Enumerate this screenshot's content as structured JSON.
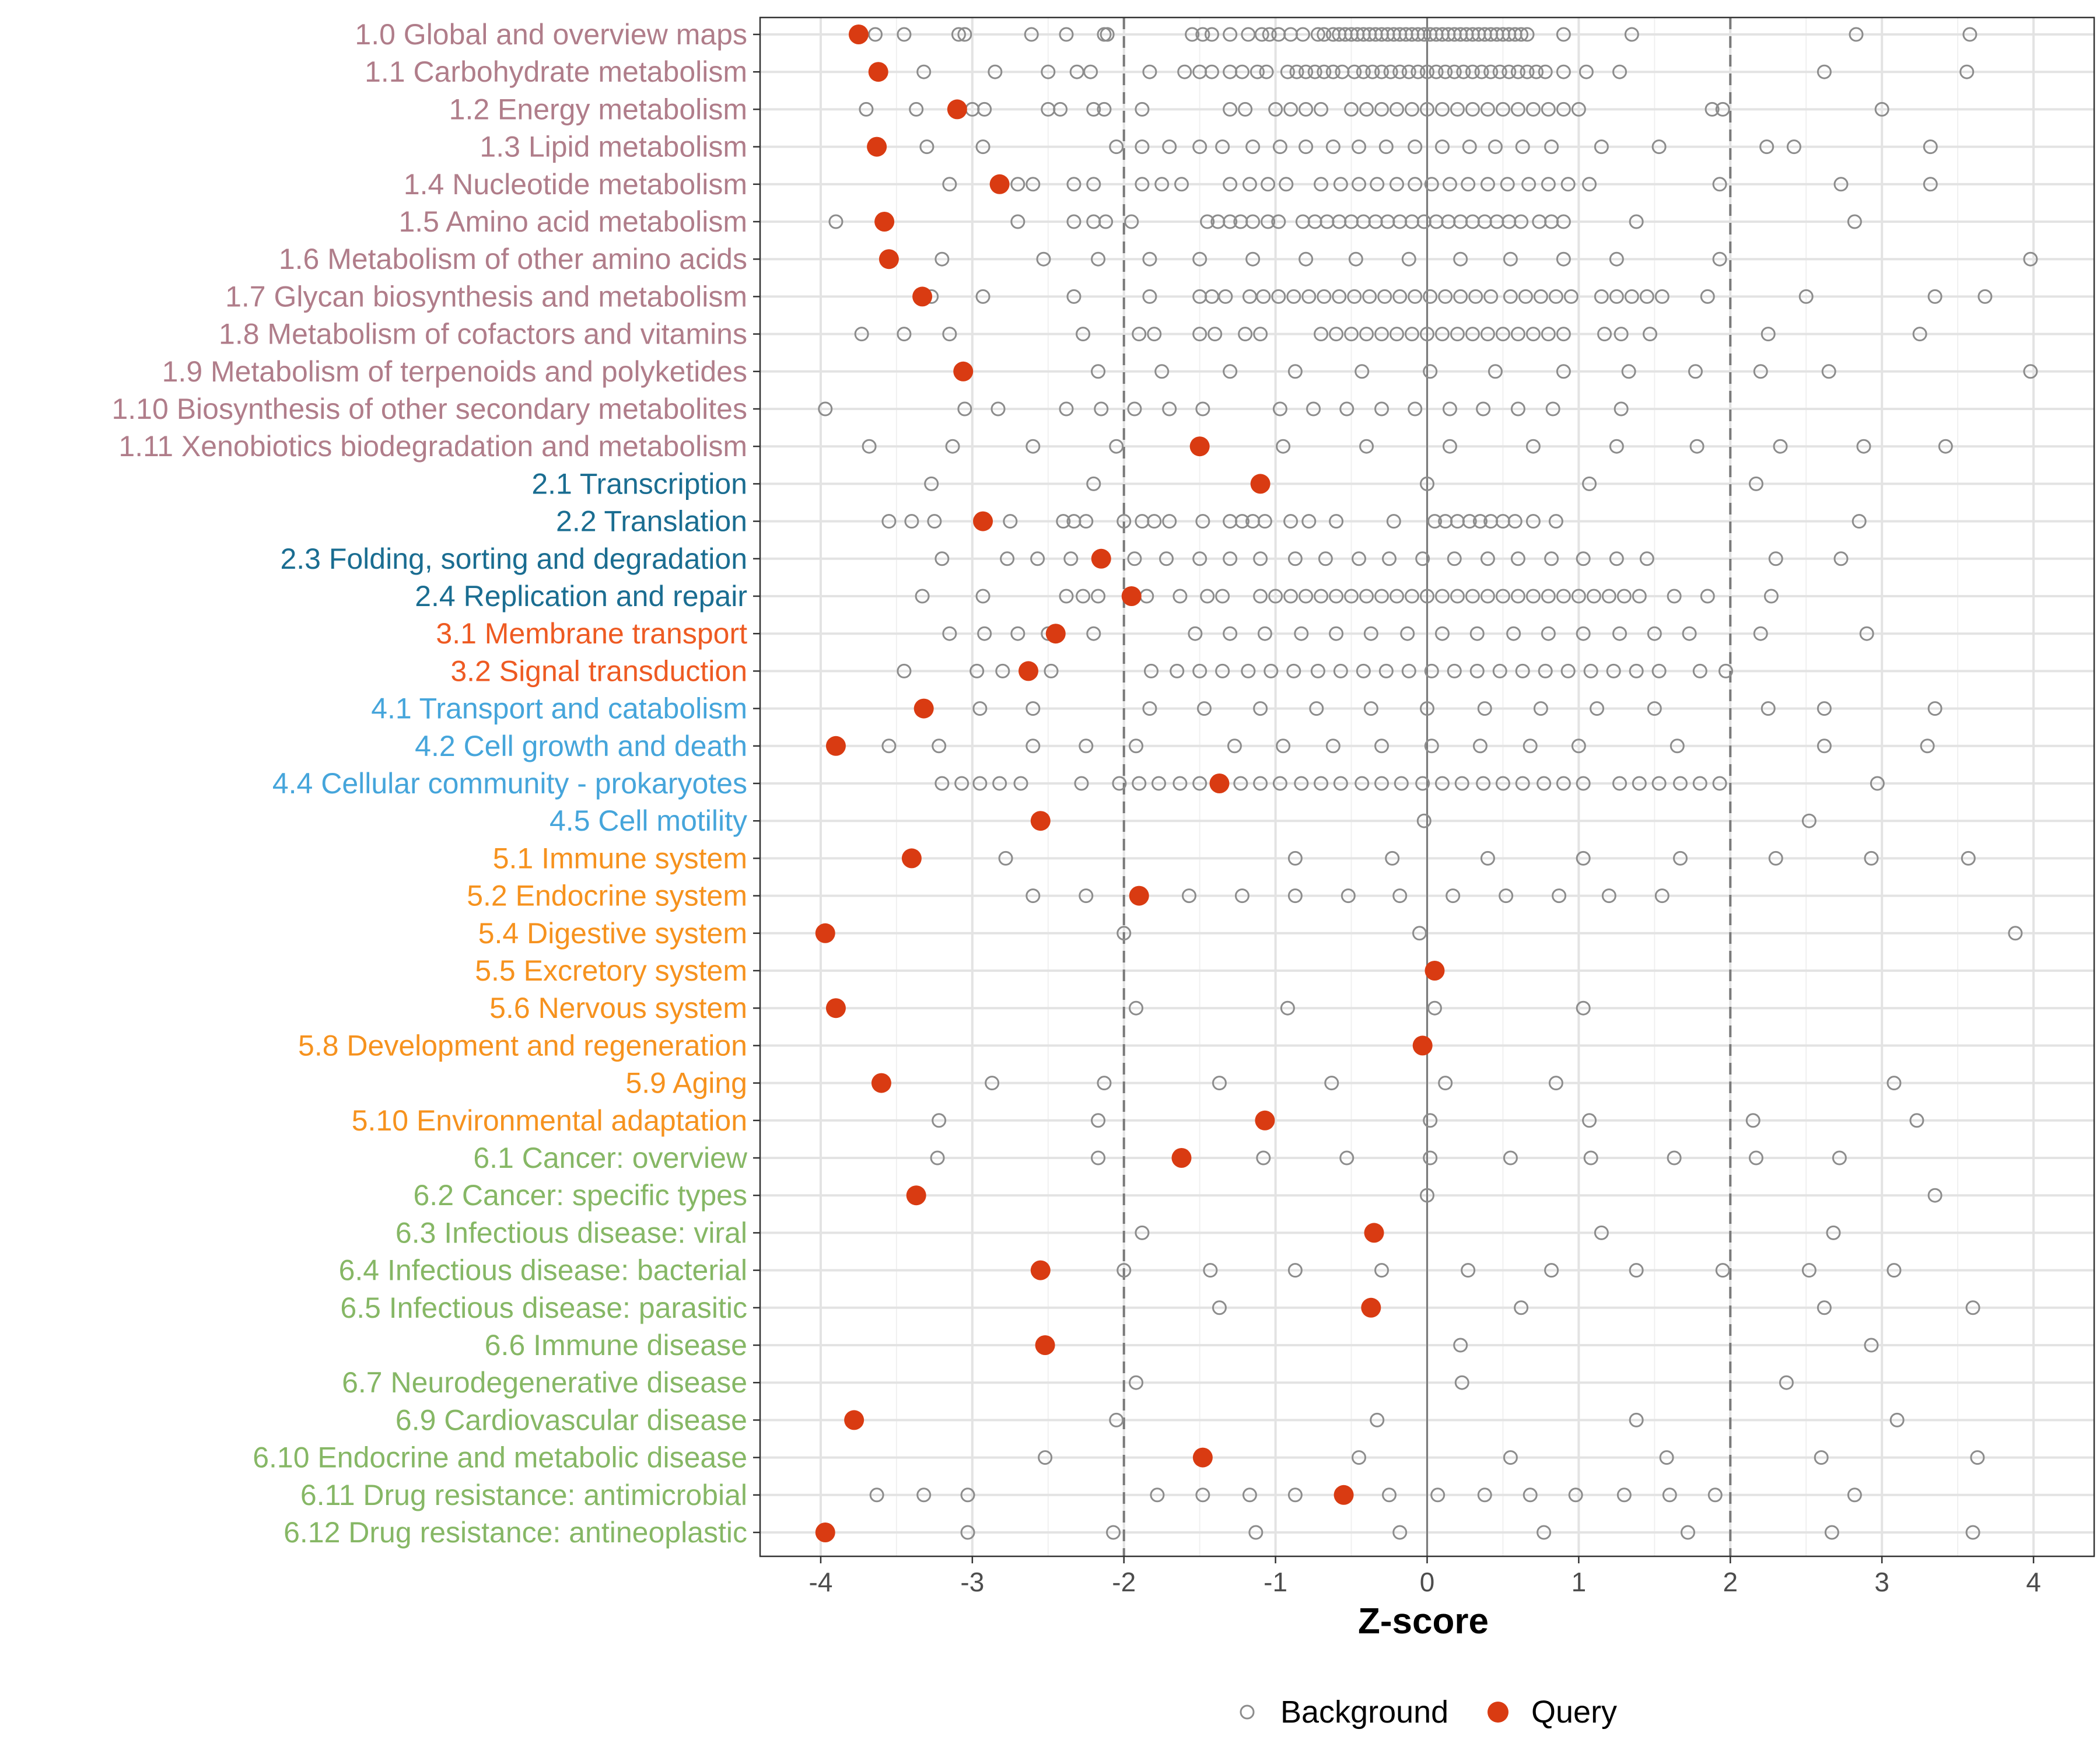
{
  "chart_data": {
    "type": "scatter",
    "xlabel": "Z-score",
    "xlim": [
      -4.4,
      4.4
    ],
    "xticks": [
      -4,
      -3,
      -2,
      -1,
      0,
      1,
      2,
      3,
      4
    ],
    "xtick_labels": [
      "-4",
      "-3",
      "-2",
      "-1",
      "0",
      "1",
      "2",
      "3",
      "4"
    ],
    "reference_lines": [
      -2,
      2
    ],
    "zero_line": 0,
    "grid": true,
    "legend": {
      "position": "bottom",
      "entries": [
        {
          "name": "Background",
          "marker": "open-circle",
          "color": "#8c8c8c"
        },
        {
          "name": "Query",
          "marker": "filled-circle",
          "color": "#d93b12"
        }
      ]
    },
    "group_colors": {
      "1": "#b07d8a",
      "2": "#1a6d91",
      "3": "#ee5a22",
      "4": "#45a5db",
      "5": "#f6921e",
      "6": "#86b765"
    },
    "categories": [
      {
        "label": "1.0 Global and overview maps",
        "group": "1",
        "query": -3.75,
        "background": [
          -3.64,
          -3.45,
          -3.09,
          -3.05,
          -2.61,
          -2.38,
          -2.13,
          -2.11,
          -1.55,
          -1.48,
          -1.42,
          -1.3,
          -1.18,
          -1.09,
          -1.04,
          -0.98,
          -0.9,
          -0.82,
          -0.72,
          -0.68,
          -0.62,
          -0.58,
          -0.54,
          -0.5,
          -0.46,
          -0.42,
          -0.38,
          -0.34,
          -0.3,
          -0.26,
          -0.22,
          -0.18,
          -0.14,
          -0.1,
          -0.06,
          -0.02,
          0.02,
          0.06,
          0.1,
          0.14,
          0.18,
          0.22,
          0.26,
          0.3,
          0.34,
          0.38,
          0.42,
          0.46,
          0.5,
          0.54,
          0.58,
          0.62,
          0.66,
          0.9,
          1.35,
          2.83,
          3.58
        ]
      },
      {
        "label": "1.1 Carbohydrate metabolism",
        "group": "1",
        "query": -3.62,
        "background": [
          -3.32,
          -2.85,
          -2.5,
          -2.31,
          -2.22,
          -1.83,
          -1.6,
          -1.5,
          -1.42,
          -1.3,
          -1.22,
          -1.12,
          -1.06,
          -0.92,
          -0.86,
          -0.8,
          -0.74,
          -0.68,
          -0.62,
          -0.56,
          -0.48,
          -0.42,
          -0.36,
          -0.3,
          -0.24,
          -0.18,
          -0.12,
          -0.06,
          0.0,
          0.06,
          0.12,
          0.18,
          0.24,
          0.3,
          0.36,
          0.42,
          0.48,
          0.54,
          0.6,
          0.66,
          0.72,
          0.78,
          0.9,
          1.05,
          1.27,
          2.62,
          3.56
        ]
      },
      {
        "label": "1.2 Energy metabolism",
        "group": "1",
        "query": -3.1,
        "background": [
          -3.7,
          -3.37,
          -3.0,
          -2.92,
          -2.5,
          -2.42,
          -2.2,
          -2.13,
          -1.88,
          -1.3,
          -1.2,
          -1.0,
          -0.9,
          -0.8,
          -0.7,
          -0.5,
          -0.4,
          -0.3,
          -0.2,
          -0.1,
          0.0,
          0.1,
          0.2,
          0.3,
          0.4,
          0.5,
          0.6,
          0.7,
          0.8,
          0.9,
          1.0,
          1.88,
          1.95,
          3.0
        ]
      },
      {
        "label": "1.3 Lipid metabolism",
        "group": "1",
        "query": -3.63,
        "background": [
          -3.3,
          -2.93,
          -2.05,
          -1.88,
          -1.7,
          -1.5,
          -1.35,
          -1.15,
          -0.97,
          -0.8,
          -0.62,
          -0.45,
          -0.27,
          -0.08,
          0.1,
          0.28,
          0.45,
          0.63,
          0.82,
          1.15,
          1.53,
          2.24,
          2.42,
          3.32
        ]
      },
      {
        "label": "1.4 Nucleotide metabolism",
        "group": "1",
        "query": -2.82,
        "background": [
          -3.15,
          -2.7,
          -2.6,
          -2.33,
          -2.2,
          -1.88,
          -1.75,
          -1.62,
          -1.3,
          -1.17,
          -1.05,
          -0.93,
          -0.7,
          -0.57,
          -0.45,
          -0.33,
          -0.2,
          -0.08,
          0.03,
          0.15,
          0.27,
          0.4,
          0.53,
          0.67,
          0.8,
          0.93,
          1.07,
          1.93,
          2.73,
          3.32
        ]
      },
      {
        "label": "1.5 Amino acid metabolism",
        "group": "1",
        "query": -3.58,
        "background": [
          -3.9,
          -2.7,
          -2.33,
          -2.2,
          -2.12,
          -1.95,
          -1.45,
          -1.38,
          -1.3,
          -1.23,
          -1.15,
          -1.05,
          -0.98,
          -0.82,
          -0.74,
          -0.66,
          -0.58,
          -0.5,
          -0.42,
          -0.34,
          -0.26,
          -0.18,
          -0.1,
          -0.02,
          0.06,
          0.14,
          0.22,
          0.3,
          0.38,
          0.46,
          0.54,
          0.62,
          0.74,
          0.82,
          0.9,
          1.38,
          2.82
        ]
      },
      {
        "label": "1.6 Metabolism of other amino acids",
        "group": "1",
        "query": -3.55,
        "background": [
          -3.2,
          -2.53,
          -2.17,
          -1.83,
          -1.5,
          -1.15,
          -0.8,
          -0.47,
          -0.12,
          0.22,
          0.55,
          0.9,
          1.25,
          1.93,
          3.98
        ]
      },
      {
        "label": "1.7 Glycan biosynthesis and metabolism",
        "group": "1",
        "query": -3.33,
        "background": [
          -3.27,
          -2.93,
          -2.33,
          -1.83,
          -1.5,
          -1.42,
          -1.33,
          -1.17,
          -1.08,
          -0.98,
          -0.88,
          -0.78,
          -0.68,
          -0.58,
          -0.48,
          -0.38,
          -0.28,
          -0.18,
          -0.08,
          0.02,
          0.12,
          0.22,
          0.32,
          0.42,
          0.55,
          0.65,
          0.75,
          0.85,
          0.95,
          1.15,
          1.25,
          1.35,
          1.45,
          1.55,
          1.85,
          2.5,
          3.35,
          3.68
        ]
      },
      {
        "label": "1.8 Metabolism of cofactors and vitamins",
        "group": "1",
        "query": null,
        "background": [
          -3.73,
          -3.45,
          -3.15,
          -2.27,
          -1.9,
          -1.8,
          -1.5,
          -1.4,
          -1.2,
          -1.1,
          -0.7,
          -0.6,
          -0.5,
          -0.4,
          -0.3,
          -0.2,
          -0.1,
          0.0,
          0.1,
          0.2,
          0.3,
          0.4,
          0.5,
          0.6,
          0.7,
          0.8,
          0.9,
          1.17,
          1.28,
          1.47,
          2.25,
          3.25
        ]
      },
      {
        "label": "1.9 Metabolism of terpenoids and polyketides",
        "group": "1",
        "query": -3.06,
        "background": [
          -2.17,
          -1.75,
          -1.3,
          -0.87,
          -0.43,
          0.02,
          0.45,
          0.9,
          1.33,
          1.77,
          2.2,
          2.65,
          3.98
        ]
      },
      {
        "label": "1.10 Biosynthesis of other secondary metabolites",
        "group": "1",
        "query": null,
        "background": [
          -3.97,
          -3.05,
          -2.83,
          -2.38,
          -2.15,
          -1.93,
          -1.7,
          -1.48,
          -0.97,
          -0.75,
          -0.53,
          -0.3,
          -0.08,
          0.15,
          0.37,
          0.6,
          0.83,
          1.28
        ]
      },
      {
        "label": "1.11 Xenobiotics biodegradation and metabolism",
        "group": "1",
        "query": -1.5,
        "background": [
          -3.68,
          -3.13,
          -2.6,
          -2.05,
          -0.95,
          -0.4,
          0.15,
          0.7,
          1.25,
          1.78,
          2.33,
          2.88,
          3.42
        ]
      },
      {
        "label": "2.1 Transcription",
        "group": "2",
        "query": -1.1,
        "background": [
          -3.27,
          -2.2,
          0.0,
          1.07,
          2.17
        ]
      },
      {
        "label": "2.2 Translation",
        "group": "2",
        "query": -2.93,
        "background": [
          -3.55,
          -3.4,
          -3.25,
          -2.75,
          -2.4,
          -2.33,
          -2.25,
          -2.0,
          -1.88,
          -1.8,
          -1.7,
          -1.48,
          -1.3,
          -1.22,
          -1.15,
          -1.07,
          -0.9,
          -0.78,
          -0.6,
          -0.22,
          0.05,
          0.12,
          0.2,
          0.28,
          0.35,
          0.42,
          0.5,
          0.58,
          0.7,
          0.85,
          2.85
        ]
      },
      {
        "label": "2.3 Folding, sorting and degradation",
        "group": "2",
        "query": -2.15,
        "background": [
          -3.2,
          -2.77,
          -2.57,
          -2.35,
          -1.93,
          -1.72,
          -1.5,
          -1.3,
          -1.1,
          -0.87,
          -0.67,
          -0.45,
          -0.25,
          -0.03,
          0.18,
          0.4,
          0.6,
          0.82,
          1.03,
          1.25,
          1.45,
          2.3,
          2.73
        ]
      },
      {
        "label": "2.4 Replication and repair",
        "group": "2",
        "query": -1.95,
        "background": [
          -3.33,
          -2.93,
          -2.38,
          -2.27,
          -2.17,
          -1.85,
          -1.63,
          -1.45,
          -1.35,
          -1.1,
          -1.0,
          -0.9,
          -0.8,
          -0.7,
          -0.6,
          -0.5,
          -0.4,
          -0.3,
          -0.2,
          -0.1,
          0.0,
          0.1,
          0.2,
          0.3,
          0.4,
          0.5,
          0.6,
          0.7,
          0.8,
          0.9,
          1.0,
          1.1,
          1.2,
          1.3,
          1.4,
          1.63,
          1.85,
          2.27
        ]
      },
      {
        "label": "3.1 Membrane transport",
        "group": "3",
        "query": -2.45,
        "background": [
          -3.15,
          -2.92,
          -2.7,
          -2.5,
          -2.2,
          -1.53,
          -1.3,
          -1.07,
          -0.83,
          -0.6,
          -0.37,
          -0.13,
          0.1,
          0.33,
          0.57,
          0.8,
          1.03,
          1.27,
          1.5,
          1.73,
          2.2,
          2.9
        ]
      },
      {
        "label": "3.2 Signal transduction",
        "group": "3",
        "query": -2.63,
        "background": [
          -3.45,
          -2.97,
          -2.8,
          -2.48,
          -1.82,
          -1.65,
          -1.5,
          -1.35,
          -1.18,
          -1.03,
          -0.88,
          -0.72,
          -0.57,
          -0.42,
          -0.27,
          -0.12,
          0.03,
          0.18,
          0.33,
          0.48,
          0.63,
          0.78,
          0.93,
          1.08,
          1.23,
          1.38,
          1.53,
          1.8,
          1.97
        ]
      },
      {
        "label": "4.1 Transport and catabolism",
        "group": "4",
        "query": -3.32,
        "background": [
          -2.95,
          -2.6,
          -1.83,
          -1.47,
          -1.1,
          -0.73,
          -0.37,
          0.0,
          0.38,
          0.75,
          1.12,
          1.5,
          2.25,
          2.62,
          3.35
        ]
      },
      {
        "label": "4.2 Cell growth and death",
        "group": "4",
        "query": -3.9,
        "background": [
          -3.55,
          -3.22,
          -2.6,
          -2.25,
          -1.92,
          -1.27,
          -0.95,
          -0.62,
          -0.3,
          0.03,
          0.35,
          0.68,
          1.0,
          1.65,
          2.62,
          3.3
        ]
      },
      {
        "label": "4.4 Cellular community - prokaryotes",
        "group": "4",
        "query": -1.37,
        "background": [
          -3.2,
          -3.07,
          -2.95,
          -2.82,
          -2.68,
          -2.28,
          -2.03,
          -1.9,
          -1.77,
          -1.63,
          -1.5,
          -1.23,
          -1.1,
          -0.97,
          -0.83,
          -0.7,
          -0.57,
          -0.43,
          -0.3,
          -0.17,
          -0.03,
          0.1,
          0.23,
          0.37,
          0.5,
          0.63,
          0.77,
          0.9,
          1.03,
          1.27,
          1.4,
          1.53,
          1.67,
          1.8,
          1.93,
          2.97
        ]
      },
      {
        "label": "4.5 Cell motility",
        "group": "4",
        "query": -2.55,
        "background": [
          -0.02,
          2.52
        ]
      },
      {
        "label": "5.1 Immune system",
        "group": "5",
        "query": -3.4,
        "background": [
          -2.78,
          -0.87,
          -0.23,
          0.4,
          1.03,
          1.67,
          2.3,
          2.93,
          3.57
        ]
      },
      {
        "label": "5.2 Endocrine system",
        "group": "5",
        "query": -1.9,
        "background": [
          -2.6,
          -2.25,
          -1.57,
          -1.22,
          -0.87,
          -0.52,
          -0.18,
          0.17,
          0.52,
          0.87,
          1.2,
          1.55
        ]
      },
      {
        "label": "5.4 Digestive system",
        "group": "5",
        "query": -3.97,
        "background": [
          -2.0,
          -0.05,
          3.88
        ]
      },
      {
        "label": "5.5 Excretory system",
        "group": "5",
        "query": 0.05,
        "background": []
      },
      {
        "label": "5.6 Nervous system",
        "group": "5",
        "query": -3.9,
        "background": [
          -1.92,
          -0.92,
          0.05,
          1.03
        ]
      },
      {
        "label": "5.8 Development and regeneration",
        "group": "5",
        "query": -0.03,
        "background": []
      },
      {
        "label": "5.9 Aging",
        "group": "5",
        "query": -3.6,
        "background": [
          -2.87,
          -2.13,
          -1.37,
          -0.63,
          0.12,
          0.85,
          3.08
        ]
      },
      {
        "label": "5.10 Environmental adaptation",
        "group": "5",
        "query": -1.07,
        "background": [
          -3.22,
          -2.17,
          0.02,
          1.07,
          2.15,
          3.23
        ]
      },
      {
        "label": "6.1 Cancer: overview",
        "group": "6",
        "query": -1.62,
        "background": [
          -3.23,
          -2.17,
          -1.08,
          -0.53,
          0.02,
          0.55,
          1.08,
          1.63,
          2.17,
          2.72
        ]
      },
      {
        "label": "6.2 Cancer: specific types",
        "group": "6",
        "query": -3.37,
        "background": [
          0.0,
          3.35
        ]
      },
      {
        "label": "6.3 Infectious disease: viral",
        "group": "6",
        "query": -0.35,
        "background": [
          -1.88,
          1.15,
          2.68
        ]
      },
      {
        "label": "6.4 Infectious disease: bacterial",
        "group": "6",
        "query": -2.55,
        "background": [
          -2.0,
          -1.43,
          -0.87,
          -0.3,
          0.27,
          0.82,
          1.38,
          1.95,
          2.52,
          3.08
        ]
      },
      {
        "label": "6.5 Infectious disease: parasitic",
        "group": "6",
        "query": -0.37,
        "background": [
          -1.37,
          0.62,
          2.62,
          3.6
        ]
      },
      {
        "label": "6.6 Immune disease",
        "group": "6",
        "query": -2.52,
        "background": [
          0.22,
          2.93
        ]
      },
      {
        "label": "6.7 Neurodegenerative disease",
        "group": "6",
        "query": null,
        "background": [
          -1.92,
          0.23,
          2.37
        ]
      },
      {
        "label": "6.9 Cardiovascular disease",
        "group": "6",
        "query": -3.78,
        "background": [
          -2.05,
          -0.33,
          1.38,
          3.1
        ]
      },
      {
        "label": "6.10 Endocrine and metabolic disease",
        "group": "6",
        "query": -1.48,
        "background": [
          -2.52,
          -0.45,
          0.55,
          1.58,
          2.6,
          3.63
        ]
      },
      {
        "label": "6.11 Drug resistance: antimicrobial",
        "group": "6",
        "query": -0.55,
        "background": [
          -3.63,
          -3.32,
          -3.03,
          -1.78,
          -1.48,
          -1.17,
          -0.87,
          -0.25,
          0.07,
          0.38,
          0.68,
          0.98,
          1.3,
          1.6,
          1.9,
          2.82
        ]
      },
      {
        "label": "6.12 Drug resistance: antineoplastic",
        "group": "6",
        "query": -3.97,
        "background": [
          -3.03,
          -2.07,
          -1.13,
          -0.18,
          0.77,
          1.72,
          2.67,
          3.6
        ]
      }
    ]
  }
}
